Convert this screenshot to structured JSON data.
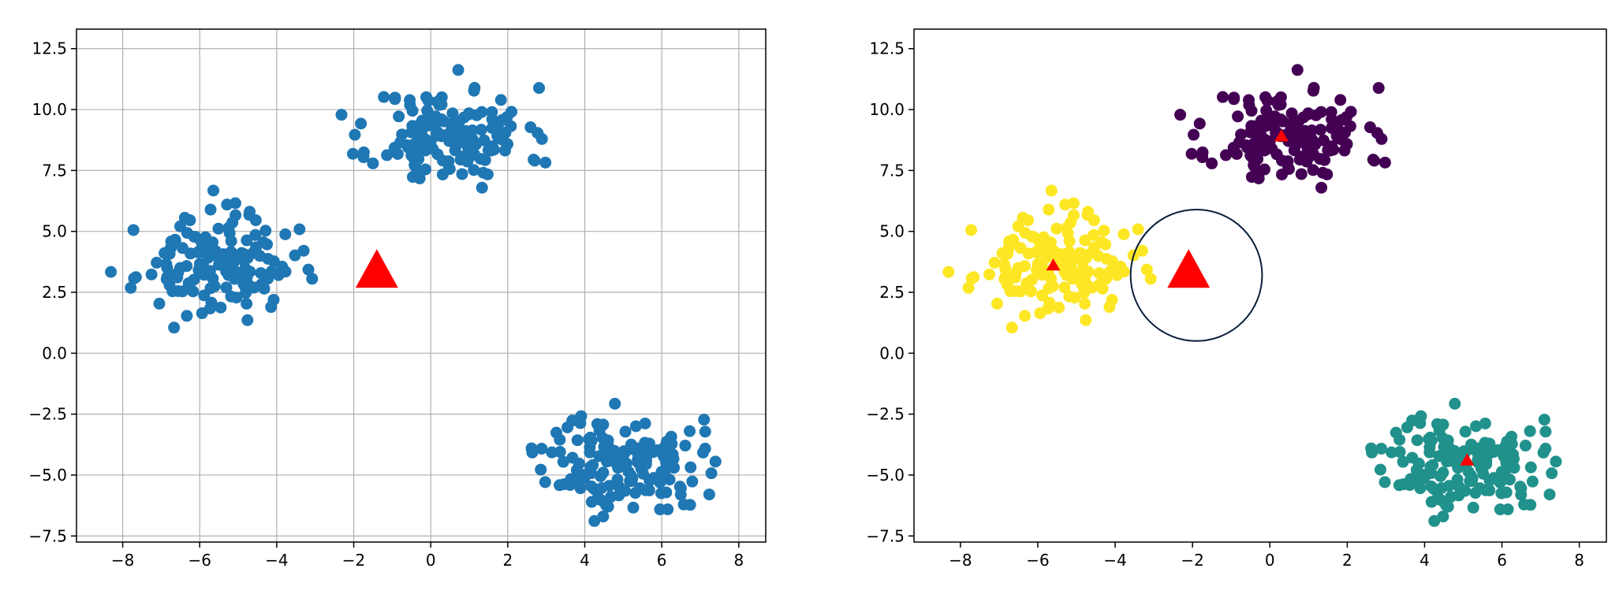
{
  "figure": {
    "background": "#ffffff",
    "panel_count": 2
  },
  "chart_data": [
    {
      "type": "scatter",
      "title": "",
      "xlabel": "",
      "ylabel": "",
      "xlim": [
        -9.2,
        8.7
      ],
      "ylim": [
        -7.75,
        13.3
      ],
      "grid": true,
      "xticks": [
        -8,
        -6,
        -4,
        -2,
        0,
        2,
        4,
        6,
        8
      ],
      "xtick_labels": [
        "−8",
        "−6",
        "−4",
        "−2",
        "0",
        "2",
        "4",
        "6",
        "8"
      ],
      "yticks": [
        -7.5,
        -5.0,
        -2.5,
        0.0,
        2.5,
        5.0,
        7.5,
        10.0,
        12.5
      ],
      "ytick_labels": [
        "−7.5",
        "−5.0",
        "−2.5",
        "0.0",
        "2.5",
        "5.0",
        "7.5",
        "10.0",
        "12.5"
      ],
      "point_color": "#1f77b4",
      "clusters": [
        {
          "center": [
            0.5,
            8.9
          ],
          "spread": 1.0,
          "count": 150,
          "seed": 11
        },
        {
          "center": [
            -5.6,
            3.6
          ],
          "spread": 1.0,
          "count": 150,
          "seed": 23
        },
        {
          "center": [
            5.0,
            -4.5
          ],
          "spread": 1.0,
          "count": 150,
          "seed": 37
        }
      ],
      "query_point": {
        "x": -1.4,
        "y": 3.3,
        "marker": "triangle",
        "color": "#ff0000",
        "size": "large"
      }
    },
    {
      "type": "scatter",
      "title": "",
      "xlabel": "",
      "ylabel": "",
      "xlim": [
        -9.2,
        8.7
      ],
      "ylim": [
        -7.75,
        13.3
      ],
      "grid": false,
      "xticks": [
        -8,
        -6,
        -4,
        -2,
        0,
        2,
        4,
        6,
        8
      ],
      "xtick_labels": [
        "−8",
        "−6",
        "−4",
        "−2",
        "0",
        "2",
        "4",
        "6",
        "8"
      ],
      "yticks": [
        -7.5,
        -5.0,
        -2.5,
        0.0,
        2.5,
        5.0,
        7.5,
        10.0,
        12.5
      ],
      "ytick_labels": [
        "−7.5",
        "−5.0",
        "−2.5",
        "0.0",
        "2.5",
        "5.0",
        "7.5",
        "10.0",
        "12.5"
      ],
      "clusters": [
        {
          "center": [
            0.5,
            8.9
          ],
          "spread": 1.0,
          "count": 150,
          "seed": 11,
          "color": "#440154"
        },
        {
          "center": [
            -5.6,
            3.6
          ],
          "spread": 1.0,
          "count": 150,
          "seed": 23,
          "color": "#fde725"
        },
        {
          "center": [
            5.0,
            -4.5
          ],
          "spread": 1.0,
          "count": 150,
          "seed": 37,
          "color": "#21918c"
        }
      ],
      "centroids": [
        {
          "x": 0.3,
          "y": 8.9,
          "marker": "triangle",
          "color": "#ff0000"
        },
        {
          "x": -5.6,
          "y": 3.6,
          "marker": "triangle",
          "color": "#ff0000"
        },
        {
          "x": 5.1,
          "y": -4.4,
          "marker": "triangle",
          "color": "#ff0000"
        }
      ],
      "query_point": {
        "x": -2.1,
        "y": 3.3,
        "marker": "triangle",
        "color": "#ff0000",
        "size": "large"
      },
      "query_circle": {
        "cx": -1.9,
        "cy": 3.2,
        "radius": 1.7,
        "stroke": "#0b1f3a"
      }
    }
  ]
}
